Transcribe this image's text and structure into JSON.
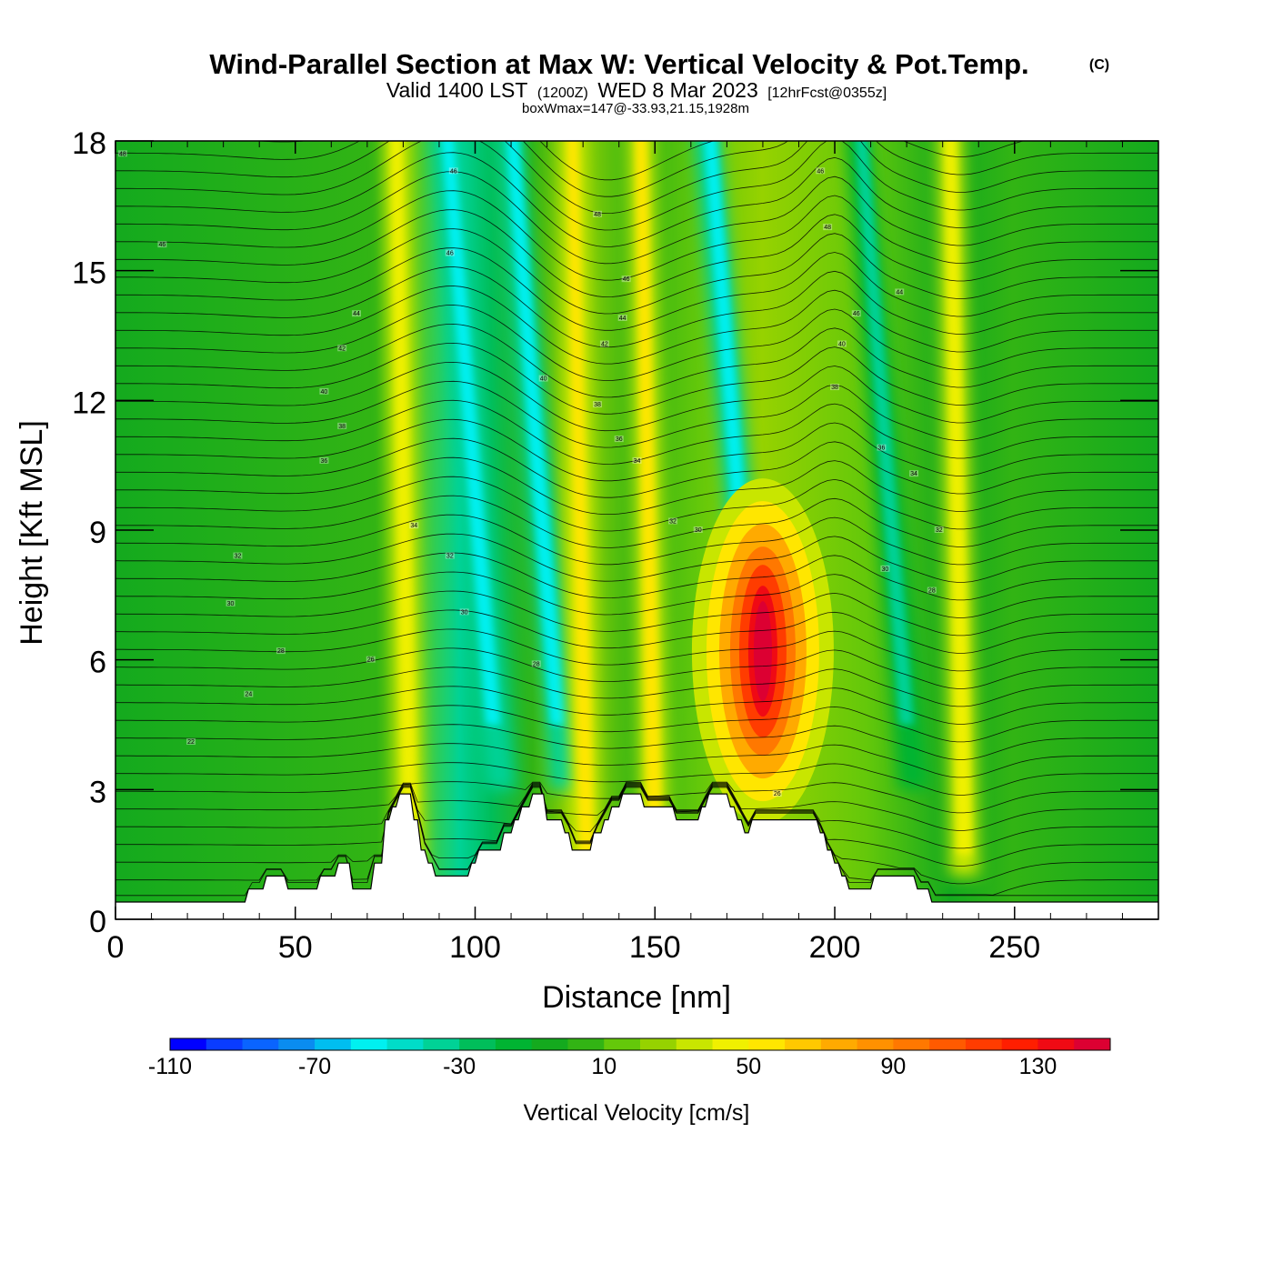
{
  "chart_data": {
    "type": "heatmap",
    "title": "Wind-Parallel Section at Max W: Vertical Velocity & Pot.Temp.",
    "copyright": "(C)",
    "subtitle": {
      "valid": "Valid 1400 LST",
      "zulu": "(1200Z)",
      "date": "WED 8 Mar 2023",
      "forecast": "[12hrFcst@0355z]"
    },
    "box_info": "boxWmax=147@-33.93,21.15,1928m",
    "xlabel": "Distance [nm]",
    "ylabel": "Height [Kft MSL]",
    "xlim": [
      0,
      290
    ],
    "ylim": [
      0,
      18
    ],
    "x_ticks": [
      0,
      50,
      100,
      150,
      200,
      250
    ],
    "x_tick_labels": [
      "0",
      "50",
      "100",
      "150",
      "200",
      "250"
    ],
    "y_ticks": [
      0,
      3,
      6,
      9,
      12,
      15,
      18
    ],
    "y_tick_labels": [
      "0",
      "3",
      "6",
      "9",
      "12",
      "15",
      "18"
    ],
    "colorbar": {
      "label": "Vertical Velocity [cm/s]",
      "min": -110,
      "max": 150,
      "step": 10,
      "tick_values": [
        -110,
        -70,
        -30,
        10,
        50,
        90,
        130
      ],
      "tick_labels": [
        "-110",
        "-70",
        "-30",
        "10",
        "50",
        "90",
        "130"
      ],
      "colors": [
        "#0000ff",
        "#0a3cff",
        "#0a64ff",
        "#0a8cf0",
        "#00bef0",
        "#00f0f0",
        "#00dcc8",
        "#00d296",
        "#00be5a",
        "#00b432",
        "#14aa1e",
        "#32b414",
        "#64c80a",
        "#96d200",
        "#c8e600",
        "#f0f000",
        "#ffe600",
        "#ffc800",
        "#ffaa00",
        "#ff9100",
        "#ff7800",
        "#ff5a00",
        "#ff3c00",
        "#ff1e00",
        "#f00a14",
        "#dc0032"
      ]
    },
    "wmax_core": {
      "x": 180,
      "height_kft": 6.2,
      "value_cm_s": 147
    },
    "updraft_bands": [
      {
        "x": 80,
        "peak_cm_s": 45
      },
      {
        "x": 129,
        "peak_cm_s": 55
      },
      {
        "x": 148,
        "peak_cm_s": 55
      },
      {
        "x": 180,
        "peak_cm_s": 147
      },
      {
        "x": 234,
        "peak_cm_s": 45
      }
    ],
    "downdraft_bands": [
      {
        "x": 97,
        "min_cm_s": -60
      },
      {
        "x": 115,
        "min_cm_s": -55
      },
      {
        "x": 170,
        "min_cm_s": -60
      },
      {
        "x": 212,
        "min_cm_s": -35
      }
    ],
    "terrain_kft": [
      [
        0,
        0.4
      ],
      [
        36,
        0.4
      ],
      [
        37,
        0.7
      ],
      [
        41,
        0.7
      ],
      [
        42,
        1.0
      ],
      [
        47,
        1.0
      ],
      [
        48,
        0.7
      ],
      [
        56,
        0.7
      ],
      [
        57,
        1.0
      ],
      [
        61,
        1.0
      ],
      [
        62,
        1.3
      ],
      [
        65,
        1.3
      ],
      [
        66,
        0.7
      ],
      [
        71,
        0.7
      ],
      [
        72,
        1.3
      ],
      [
        74,
        1.3
      ],
      [
        75,
        2.3
      ],
      [
        76,
        2.3
      ],
      [
        77,
        2.6
      ],
      [
        78,
        2.6
      ],
      [
        79,
        2.9
      ],
      [
        82,
        2.9
      ],
      [
        83,
        2.3
      ],
      [
        84,
        2.3
      ],
      [
        85,
        1.6
      ],
      [
        86,
        1.6
      ],
      [
        87,
        1.3
      ],
      [
        88,
        1.3
      ],
      [
        89,
        1.0
      ],
      [
        98,
        1.0
      ],
      [
        99,
        1.3
      ],
      [
        100,
        1.3
      ],
      [
        101,
        1.6
      ],
      [
        107,
        1.6
      ],
      [
        108,
        2.0
      ],
      [
        110,
        2.0
      ],
      [
        111,
        2.3
      ],
      [
        112,
        2.3
      ],
      [
        113,
        2.6
      ],
      [
        115,
        2.6
      ],
      [
        116,
        2.9
      ],
      [
        119,
        2.9
      ],
      [
        120,
        2.3
      ],
      [
        124,
        2.3
      ],
      [
        125,
        2.0
      ],
      [
        126,
        2.0
      ],
      [
        127,
        1.6
      ],
      [
        132,
        1.6
      ],
      [
        133,
        2.0
      ],
      [
        135,
        2.0
      ],
      [
        136,
        2.3
      ],
      [
        137,
        2.3
      ],
      [
        138,
        2.6
      ],
      [
        140,
        2.6
      ],
      [
        141,
        2.9
      ],
      [
        146,
        2.9
      ],
      [
        147,
        2.6
      ],
      [
        155,
        2.6
      ],
      [
        156,
        2.3
      ],
      [
        162,
        2.3
      ],
      [
        163,
        2.6
      ],
      [
        164,
        2.6
      ],
      [
        165,
        2.9
      ],
      [
        170,
        2.9
      ],
      [
        171,
        2.6
      ],
      [
        172,
        2.6
      ],
      [
        173,
        2.3
      ],
      [
        174,
        2.3
      ],
      [
        175,
        2.0
      ],
      [
        176,
        2.0
      ],
      [
        177,
        2.3
      ],
      [
        195,
        2.3
      ],
      [
        196,
        2.0
      ],
      [
        197,
        2.0
      ],
      [
        198,
        1.6
      ],
      [
        199,
        1.6
      ],
      [
        200,
        1.3
      ],
      [
        201,
        1.3
      ],
      [
        202,
        1.0
      ],
      [
        203,
        1.0
      ],
      [
        204,
        0.7
      ],
      [
        210,
        0.7
      ],
      [
        211,
        1.0
      ],
      [
        222,
        1.0
      ],
      [
        223,
        0.7
      ],
      [
        226,
        0.7
      ],
      [
        227,
        0.4
      ],
      [
        290,
        0.4
      ]
    ],
    "isentrope_labels": [
      {
        "x": 2,
        "y": 17.7,
        "text": "48"
      },
      {
        "x": 13,
        "y": 15.6,
        "text": "46"
      },
      {
        "x": 67,
        "y": 14.0,
        "text": "44"
      },
      {
        "x": 63,
        "y": 13.2,
        "text": "42"
      },
      {
        "x": 58,
        "y": 12.2,
        "text": "40"
      },
      {
        "x": 63,
        "y": 11.4,
        "text": "38"
      },
      {
        "x": 58,
        "y": 10.6,
        "text": "36"
      },
      {
        "x": 34,
        "y": 8.4,
        "text": "32"
      },
      {
        "x": 32,
        "y": 7.3,
        "text": "30"
      },
      {
        "x": 46,
        "y": 6.2,
        "text": "28"
      },
      {
        "x": 37,
        "y": 5.2,
        "text": "24"
      },
      {
        "x": 21,
        "y": 4.1,
        "text": "22"
      },
      {
        "x": 71,
        "y": 6.0,
        "text": "26"
      },
      {
        "x": 83,
        "y": 9.1,
        "text": "34"
      },
      {
        "x": 93,
        "y": 8.4,
        "text": "32"
      },
      {
        "x": 97,
        "y": 7.1,
        "text": "30"
      },
      {
        "x": 94,
        "y": 17.3,
        "text": "46"
      },
      {
        "x": 93,
        "y": 15.4,
        "text": "46"
      },
      {
        "x": 119,
        "y": 12.5,
        "text": "40"
      },
      {
        "x": 134,
        "y": 16.3,
        "text": "48"
      },
      {
        "x": 142,
        "y": 14.8,
        "text": "46"
      },
      {
        "x": 141,
        "y": 13.9,
        "text": "44"
      },
      {
        "x": 136,
        "y": 13.3,
        "text": "42"
      },
      {
        "x": 134,
        "y": 11.9,
        "text": "38"
      },
      {
        "x": 140,
        "y": 11.1,
        "text": "36"
      },
      {
        "x": 145,
        "y": 10.6,
        "text": "34"
      },
      {
        "x": 155,
        "y": 9.2,
        "text": "32"
      },
      {
        "x": 162,
        "y": 9.0,
        "text": "30"
      },
      {
        "x": 117,
        "y": 5.9,
        "text": "28"
      },
      {
        "x": 196,
        "y": 17.3,
        "text": "46"
      },
      {
        "x": 198,
        "y": 16.0,
        "text": "48"
      },
      {
        "x": 206,
        "y": 14.0,
        "text": "46"
      },
      {
        "x": 202,
        "y": 13.3,
        "text": "40"
      },
      {
        "x": 200,
        "y": 12.3,
        "text": "38"
      },
      {
        "x": 213,
        "y": 10.9,
        "text": "36"
      },
      {
        "x": 218,
        "y": 14.5,
        "text": "44"
      },
      {
        "x": 222,
        "y": 10.3,
        "text": "34"
      },
      {
        "x": 229,
        "y": 9.0,
        "text": "32"
      },
      {
        "x": 214,
        "y": 8.1,
        "text": "30"
      },
      {
        "x": 227,
        "y": 7.6,
        "text": "28"
      },
      {
        "x": 184,
        "y": 2.9,
        "text": "26"
      }
    ]
  }
}
